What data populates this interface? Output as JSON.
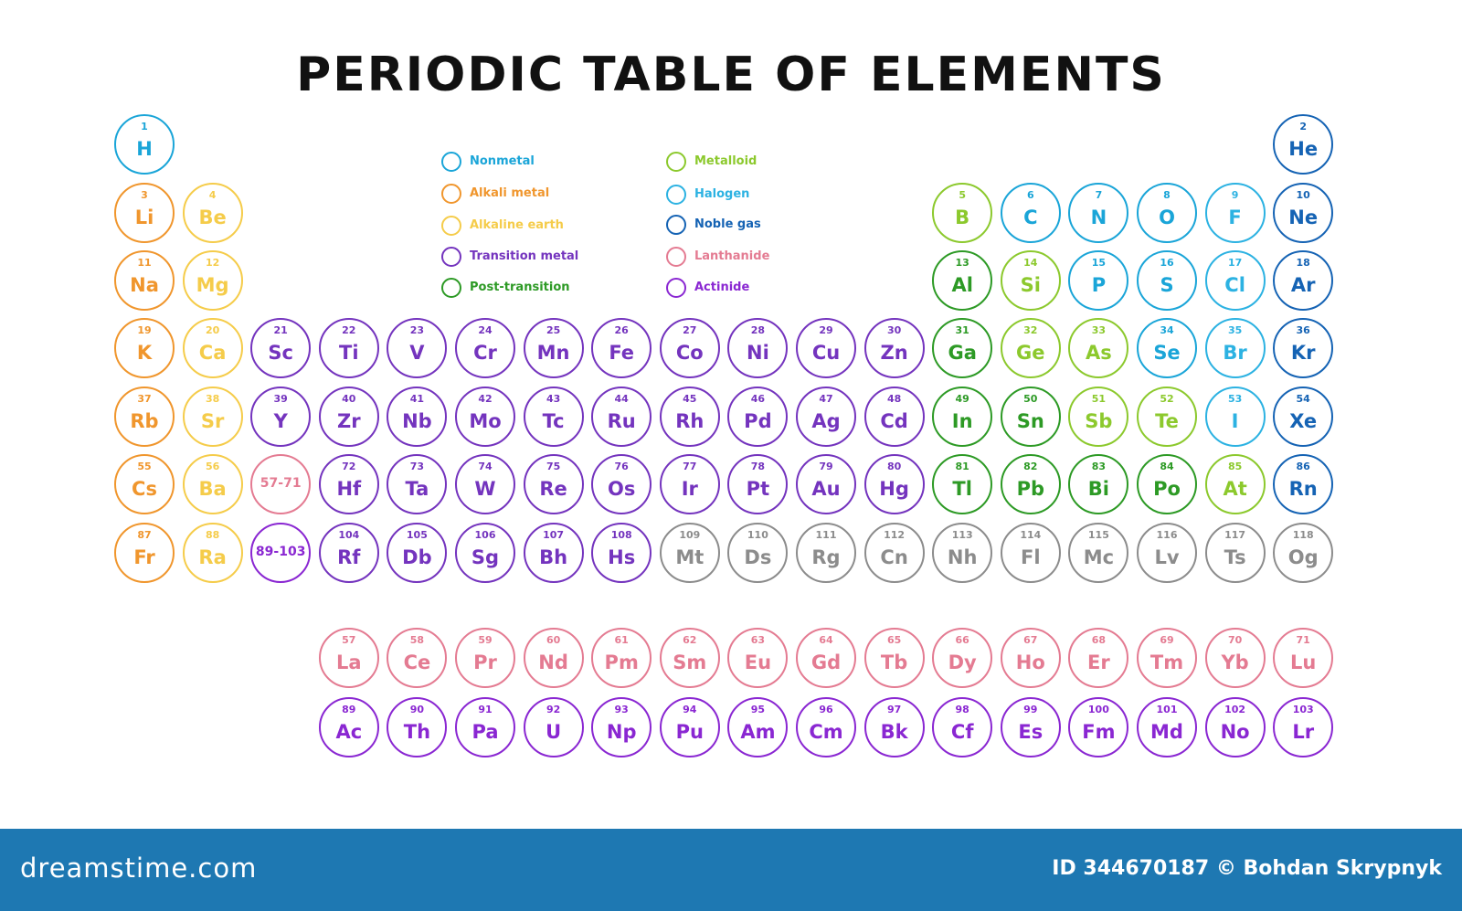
{
  "title": "PERIODIC TABLE OF ELEMENTS",
  "colors": {
    "nonmetal": "#1aa5d8",
    "alkali_metal": "#f0962d",
    "alkaline_earth": "#f5cc4a",
    "transition_metal": "#7434be",
    "post_transition": "#2d9a25",
    "metalloid": "#8cc92d",
    "halogen": "#2cb2e2",
    "noble_gas": "#1563b4",
    "lanthanide": "#e47b92",
    "actinide": "#8a27d2",
    "unknown": "#8c8c8c"
  },
  "legend": [
    {
      "key": "nonmetal",
      "label": "Nonmetal"
    },
    {
      "key": "alkali_metal",
      "label": "Alkali metal"
    },
    {
      "key": "alkaline_earth",
      "label": "Alkaline earth"
    },
    {
      "key": "transition_metal",
      "label": "Transition metal"
    },
    {
      "key": "post_transition",
      "label": "Post-transition"
    },
    {
      "key": "metalloid",
      "label": "Metalloid"
    },
    {
      "key": "halogen",
      "label": "Halogen"
    },
    {
      "key": "noble_gas",
      "label": "Noble gas"
    },
    {
      "key": "lanthanide",
      "label": "Lanthanide"
    },
    {
      "key": "actinide",
      "label": "Actinide"
    }
  ],
  "elements": [
    {
      "n": "1",
      "s": "H",
      "cat": "nonmetal",
      "period": 1,
      "group": 1
    },
    {
      "n": "2",
      "s": "He",
      "cat": "noble_gas",
      "period": 1,
      "group": 18
    },
    {
      "n": "3",
      "s": "Li",
      "cat": "alkali_metal",
      "period": 2,
      "group": 1
    },
    {
      "n": "4",
      "s": "Be",
      "cat": "alkaline_earth",
      "period": 2,
      "group": 2
    },
    {
      "n": "5",
      "s": "B",
      "cat": "metalloid",
      "period": 2,
      "group": 13
    },
    {
      "n": "6",
      "s": "C",
      "cat": "nonmetal",
      "period": 2,
      "group": 14
    },
    {
      "n": "7",
      "s": "N",
      "cat": "nonmetal",
      "period": 2,
      "group": 15
    },
    {
      "n": "8",
      "s": "O",
      "cat": "nonmetal",
      "period": 2,
      "group": 16
    },
    {
      "n": "9",
      "s": "F",
      "cat": "halogen",
      "period": 2,
      "group": 17
    },
    {
      "n": "10",
      "s": "Ne",
      "cat": "noble_gas",
      "period": 2,
      "group": 18
    },
    {
      "n": "11",
      "s": "Na",
      "cat": "alkali_metal",
      "period": 3,
      "group": 1
    },
    {
      "n": "12",
      "s": "Mg",
      "cat": "alkaline_earth",
      "period": 3,
      "group": 2
    },
    {
      "n": "13",
      "s": "Al",
      "cat": "post_transition",
      "period": 3,
      "group": 13
    },
    {
      "n": "14",
      "s": "Si",
      "cat": "metalloid",
      "period": 3,
      "group": 14
    },
    {
      "n": "15",
      "s": "P",
      "cat": "nonmetal",
      "period": 3,
      "group": 15
    },
    {
      "n": "16",
      "s": "S",
      "cat": "nonmetal",
      "period": 3,
      "group": 16
    },
    {
      "n": "17",
      "s": "Cl",
      "cat": "halogen",
      "period": 3,
      "group": 17
    },
    {
      "n": "18",
      "s": "Ar",
      "cat": "noble_gas",
      "period": 3,
      "group": 18
    },
    {
      "n": "19",
      "s": "K",
      "cat": "alkali_metal",
      "period": 4,
      "group": 1
    },
    {
      "n": "20",
      "s": "Ca",
      "cat": "alkaline_earth",
      "period": 4,
      "group": 2
    },
    {
      "n": "21",
      "s": "Sc",
      "cat": "transition_metal",
      "period": 4,
      "group": 3
    },
    {
      "n": "22",
      "s": "Ti",
      "cat": "transition_metal",
      "period": 4,
      "group": 4
    },
    {
      "n": "23",
      "s": "V",
      "cat": "transition_metal",
      "period": 4,
      "group": 5
    },
    {
      "n": "24",
      "s": "Cr",
      "cat": "transition_metal",
      "period": 4,
      "group": 6
    },
    {
      "n": "25",
      "s": "Mn",
      "cat": "transition_metal",
      "period": 4,
      "group": 7
    },
    {
      "n": "26",
      "s": "Fe",
      "cat": "transition_metal",
      "period": 4,
      "group": 8
    },
    {
      "n": "27",
      "s": "Co",
      "cat": "transition_metal",
      "period": 4,
      "group": 9
    },
    {
      "n": "28",
      "s": "Ni",
      "cat": "transition_metal",
      "period": 4,
      "group": 10
    },
    {
      "n": "29",
      "s": "Cu",
      "cat": "transition_metal",
      "period": 4,
      "group": 11
    },
    {
      "n": "30",
      "s": "Zn",
      "cat": "transition_metal",
      "period": 4,
      "group": 12
    },
    {
      "n": "31",
      "s": "Ga",
      "cat": "post_transition",
      "period": 4,
      "group": 13
    },
    {
      "n": "32",
      "s": "Ge",
      "cat": "metalloid",
      "period": 4,
      "group": 14
    },
    {
      "n": "33",
      "s": "As",
      "cat": "metalloid",
      "period": 4,
      "group": 15
    },
    {
      "n": "34",
      "s": "Se",
      "cat": "nonmetal",
      "period": 4,
      "group": 16
    },
    {
      "n": "35",
      "s": "Br",
      "cat": "halogen",
      "period": 4,
      "group": 17
    },
    {
      "n": "36",
      "s": "Kr",
      "cat": "noble_gas",
      "period": 4,
      "group": 18
    },
    {
      "n": "37",
      "s": "Rb",
      "cat": "alkali_metal",
      "period": 5,
      "group": 1
    },
    {
      "n": "38",
      "s": "Sr",
      "cat": "alkaline_earth",
      "period": 5,
      "group": 2
    },
    {
      "n": "39",
      "s": "Y",
      "cat": "transition_metal",
      "period": 5,
      "group": 3
    },
    {
      "n": "40",
      "s": "Zr",
      "cat": "transition_metal",
      "period": 5,
      "group": 4
    },
    {
      "n": "41",
      "s": "Nb",
      "cat": "transition_metal",
      "period": 5,
      "group": 5
    },
    {
      "n": "42",
      "s": "Mo",
      "cat": "transition_metal",
      "period": 5,
      "group": 6
    },
    {
      "n": "43",
      "s": "Tc",
      "cat": "transition_metal",
      "period": 5,
      "group": 7
    },
    {
      "n": "44",
      "s": "Ru",
      "cat": "transition_metal",
      "period": 5,
      "group": 8
    },
    {
      "n": "45",
      "s": "Rh",
      "cat": "transition_metal",
      "period": 5,
      "group": 9
    },
    {
      "n": "46",
      "s": "Pd",
      "cat": "transition_metal",
      "period": 5,
      "group": 10
    },
    {
      "n": "47",
      "s": "Ag",
      "cat": "transition_metal",
      "period": 5,
      "group": 11
    },
    {
      "n": "48",
      "s": "Cd",
      "cat": "transition_metal",
      "period": 5,
      "group": 12
    },
    {
      "n": "49",
      "s": "In",
      "cat": "post_transition",
      "period": 5,
      "group": 13
    },
    {
      "n": "50",
      "s": "Sn",
      "cat": "post_transition",
      "period": 5,
      "group": 14
    },
    {
      "n": "51",
      "s": "Sb",
      "cat": "metalloid",
      "period": 5,
      "group": 15
    },
    {
      "n": "52",
      "s": "Te",
      "cat": "metalloid",
      "period": 5,
      "group": 16
    },
    {
      "n": "53",
      "s": "I",
      "cat": "halogen",
      "period": 5,
      "group": 17
    },
    {
      "n": "54",
      "s": "Xe",
      "cat": "noble_gas",
      "period": 5,
      "group": 18
    },
    {
      "n": "55",
      "s": "Cs",
      "cat": "alkali_metal",
      "period": 6,
      "group": 1
    },
    {
      "n": "56",
      "s": "Ba",
      "cat": "alkaline_earth",
      "period": 6,
      "group": 2
    },
    {
      "n": "",
      "s": "57-71",
      "cat": "lanthanide",
      "period": 6,
      "group": 3,
      "placeholder": true
    },
    {
      "n": "72",
      "s": "Hf",
      "cat": "transition_metal",
      "period": 6,
      "group": 4
    },
    {
      "n": "73",
      "s": "Ta",
      "cat": "transition_metal",
      "period": 6,
      "group": 5
    },
    {
      "n": "74",
      "s": "W",
      "cat": "transition_metal",
      "period": 6,
      "group": 6
    },
    {
      "n": "75",
      "s": "Re",
      "cat": "transition_metal",
      "period": 6,
      "group": 7
    },
    {
      "n": "76",
      "s": "Os",
      "cat": "transition_metal",
      "period": 6,
      "group": 8
    },
    {
      "n": "77",
      "s": "Ir",
      "cat": "transition_metal",
      "period": 6,
      "group": 9
    },
    {
      "n": "78",
      "s": "Pt",
      "cat": "transition_metal",
      "period": 6,
      "group": 10
    },
    {
      "n": "79",
      "s": "Au",
      "cat": "transition_metal",
      "period": 6,
      "group": 11
    },
    {
      "n": "80",
      "s": "Hg",
      "cat": "transition_metal",
      "period": 6,
      "group": 12
    },
    {
      "n": "81",
      "s": "Tl",
      "cat": "post_transition",
      "period": 6,
      "group": 13
    },
    {
      "n": "82",
      "s": "Pb",
      "cat": "post_transition",
      "period": 6,
      "group": 14
    },
    {
      "n": "83",
      "s": "Bi",
      "cat": "post_transition",
      "period": 6,
      "group": 15
    },
    {
      "n": "84",
      "s": "Po",
      "cat": "post_transition",
      "period": 6,
      "group": 16
    },
    {
      "n": "85",
      "s": "At",
      "cat": "metalloid",
      "period": 6,
      "group": 17
    },
    {
      "n": "86",
      "s": "Rn",
      "cat": "noble_gas",
      "period": 6,
      "group": 18
    },
    {
      "n": "87",
      "s": "Fr",
      "cat": "alkali_metal",
      "period": 7,
      "group": 1
    },
    {
      "n": "88",
      "s": "Ra",
      "cat": "alkaline_earth",
      "period": 7,
      "group": 2
    },
    {
      "n": "",
      "s": "89-103",
      "cat": "actinide",
      "period": 7,
      "group": 3,
      "placeholder": true
    },
    {
      "n": "104",
      "s": "Rf",
      "cat": "transition_metal",
      "period": 7,
      "group": 4
    },
    {
      "n": "105",
      "s": "Db",
      "cat": "transition_metal",
      "period": 7,
      "group": 5
    },
    {
      "n": "106",
      "s": "Sg",
      "cat": "transition_metal",
      "period": 7,
      "group": 6
    },
    {
      "n": "107",
      "s": "Bh",
      "cat": "transition_metal",
      "period": 7,
      "group": 7
    },
    {
      "n": "108",
      "s": "Hs",
      "cat": "transition_metal",
      "period": 7,
      "group": 8
    },
    {
      "n": "109",
      "s": "Mt",
      "cat": "unknown",
      "period": 7,
      "group": 9
    },
    {
      "n": "110",
      "s": "Ds",
      "cat": "unknown",
      "period": 7,
      "group": 10
    },
    {
      "n": "111",
      "s": "Rg",
      "cat": "unknown",
      "period": 7,
      "group": 11
    },
    {
      "n": "112",
      "s": "Cn",
      "cat": "unknown",
      "period": 7,
      "group": 12
    },
    {
      "n": "113",
      "s": "Nh",
      "cat": "unknown",
      "period": 7,
      "group": 13
    },
    {
      "n": "114",
      "s": "Fl",
      "cat": "unknown",
      "period": 7,
      "group": 14
    },
    {
      "n": "115",
      "s": "Mc",
      "cat": "unknown",
      "period": 7,
      "group": 15
    },
    {
      "n": "116",
      "s": "Lv",
      "cat": "unknown",
      "period": 7,
      "group": 16
    },
    {
      "n": "117",
      "s": "Ts",
      "cat": "unknown",
      "period": 7,
      "group": 17
    },
    {
      "n": "118",
      "s": "Og",
      "cat": "unknown",
      "period": 7,
      "group": 18
    },
    {
      "n": "57",
      "s": "La",
      "cat": "lanthanide",
      "period": 9,
      "group": 4
    },
    {
      "n": "58",
      "s": "Ce",
      "cat": "lanthanide",
      "period": 9,
      "group": 5
    },
    {
      "n": "59",
      "s": "Pr",
      "cat": "lanthanide",
      "period": 9,
      "group": 6
    },
    {
      "n": "60",
      "s": "Nd",
      "cat": "lanthanide",
      "period": 9,
      "group": 7
    },
    {
      "n": "61",
      "s": "Pm",
      "cat": "lanthanide",
      "period": 9,
      "group": 8
    },
    {
      "n": "62",
      "s": "Sm",
      "cat": "lanthanide",
      "period": 9,
      "group": 9
    },
    {
      "n": "63",
      "s": "Eu",
      "cat": "lanthanide",
      "period": 9,
      "group": 10
    },
    {
      "n": "64",
      "s": "Gd",
      "cat": "lanthanide",
      "period": 9,
      "group": 11
    },
    {
      "n": "65",
      "s": "Tb",
      "cat": "lanthanide",
      "period": 9,
      "group": 12
    },
    {
      "n": "66",
      "s": "Dy",
      "cat": "lanthanide",
      "period": 9,
      "group": 13
    },
    {
      "n": "67",
      "s": "Ho",
      "cat": "lanthanide",
      "period": 9,
      "group": 14
    },
    {
      "n": "68",
      "s": "Er",
      "cat": "lanthanide",
      "period": 9,
      "group": 15
    },
    {
      "n": "69",
      "s": "Tm",
      "cat": "lanthanide",
      "period": 9,
      "group": 16
    },
    {
      "n": "70",
      "s": "Yb",
      "cat": "lanthanide",
      "period": 9,
      "group": 17
    },
    {
      "n": "71",
      "s": "Lu",
      "cat": "lanthanide",
      "period": 9,
      "group": 18
    },
    {
      "n": "89",
      "s": "Ac",
      "cat": "actinide",
      "period": 10,
      "group": 4
    },
    {
      "n": "90",
      "s": "Th",
      "cat": "actinide",
      "period": 10,
      "group": 5
    },
    {
      "n": "91",
      "s": "Pa",
      "cat": "actinide",
      "period": 10,
      "group": 6
    },
    {
      "n": "92",
      "s": "U",
      "cat": "actinide",
      "period": 10,
      "group": 7
    },
    {
      "n": "93",
      "s": "Np",
      "cat": "actinide",
      "period": 10,
      "group": 8
    },
    {
      "n": "94",
      "s": "Pu",
      "cat": "actinide",
      "period": 10,
      "group": 9
    },
    {
      "n": "95",
      "s": "Am",
      "cat": "actinide",
      "period": 10,
      "group": 10
    },
    {
      "n": "96",
      "s": "Cm",
      "cat": "actinide",
      "period": 10,
      "group": 11
    },
    {
      "n": "97",
      "s": "Bk",
      "cat": "actinide",
      "period": 10,
      "group": 12
    },
    {
      "n": "98",
      "s": "Cf",
      "cat": "actinide",
      "period": 10,
      "group": 13
    },
    {
      "n": "99",
      "s": "Es",
      "cat": "actinide",
      "period": 10,
      "group": 14
    },
    {
      "n": "100",
      "s": "Fm",
      "cat": "actinide",
      "period": 10,
      "group": 15
    },
    {
      "n": "101",
      "s": "Md",
      "cat": "actinide",
      "period": 10,
      "group": 16
    },
    {
      "n": "102",
      "s": "No",
      "cat": "actinide",
      "period": 10,
      "group": 17
    },
    {
      "n": "103",
      "s": "Lr",
      "cat": "actinide",
      "period": 10,
      "group": 18
    }
  ],
  "footer": {
    "brand": "dreamstime.com",
    "credit": "ID 344670187 © Bohdan Skrypnyk"
  }
}
